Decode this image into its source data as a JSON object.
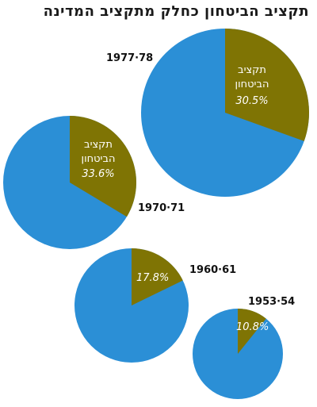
{
  "title": "תקציב הביטחון כחלק מתקציב המדינה",
  "colors": {
    "defense": "#7f7404",
    "rest": "#2b8fd6"
  },
  "chart_data": [
    {
      "type": "pie",
      "period": "1977·78",
      "defense_share": 30.5,
      "value_label": "30.5%",
      "slice_label": [
        "תקציב",
        "הביטחון"
      ]
    },
    {
      "type": "pie",
      "period": "1970·71",
      "defense_share": 33.6,
      "value_label": "33.6%",
      "slice_label": [
        "תקציב",
        "הביטחון"
      ]
    },
    {
      "type": "pie",
      "period": "1960·61",
      "defense_share": 17.8,
      "value_label": "17.8%"
    },
    {
      "type": "pie",
      "period": "1953·54",
      "defense_share": 10.8,
      "value_label": "10.8%"
    }
  ]
}
